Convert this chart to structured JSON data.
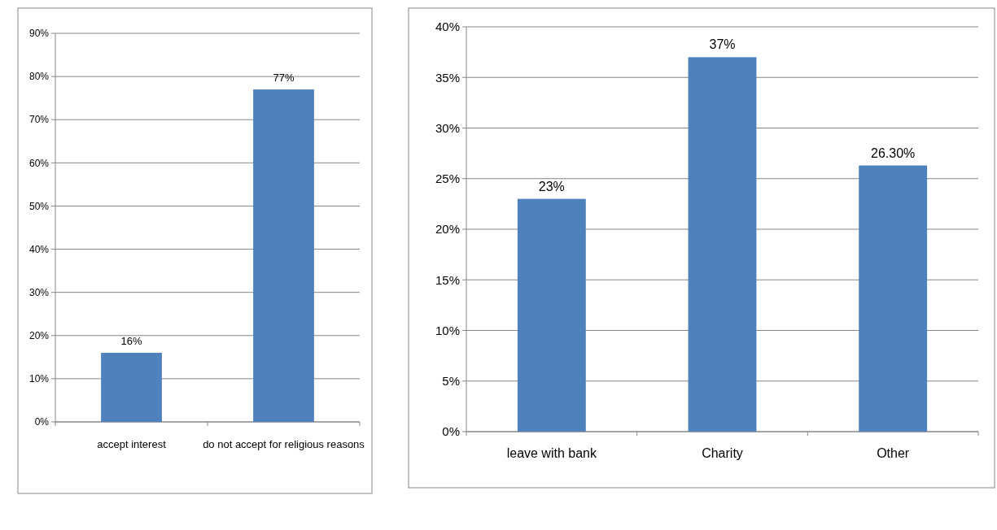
{
  "chart_data": [
    {
      "type": "bar",
      "categories": [
        "accept interest",
        "do not accept for religious reasons"
      ],
      "values": [
        16,
        77
      ],
      "color": "#4f81bd",
      "value_labels": [
        "16%",
        "77%"
      ],
      "ylim": [
        0,
        90
      ],
      "yticks": [
        {
          "value": 0,
          "label": "0%"
        },
        {
          "value": 10,
          "label": "10%"
        },
        {
          "value": 20,
          "label": "20%"
        },
        {
          "value": 30,
          "label": "30%"
        },
        {
          "value": 40,
          "label": "40%"
        },
        {
          "value": 50,
          "label": "50%"
        },
        {
          "value": 60,
          "label": "60%"
        },
        {
          "value": 70,
          "label": "70%"
        },
        {
          "value": 80,
          "label": "80%"
        },
        {
          "value": 90,
          "label": "90%"
        }
      ],
      "grid": "y"
    },
    {
      "type": "bar",
      "categories": [
        "leave with bank",
        "Charity",
        "Other"
      ],
      "values": [
        23,
        37,
        26.3
      ],
      "color": "#4f81bd",
      "value_labels": [
        "23%",
        "37%",
        "26.30%"
      ],
      "ylim": [
        0,
        40
      ],
      "yticks": [
        {
          "value": 0,
          "label": "0%"
        },
        {
          "value": 5,
          "label": "5%"
        },
        {
          "value": 10,
          "label": "10%"
        },
        {
          "value": 15,
          "label": "15%"
        },
        {
          "value": 20,
          "label": "20%"
        },
        {
          "value": 25,
          "label": "25%"
        },
        {
          "value": 30,
          "label": "30%"
        },
        {
          "value": 35,
          "label": "35%"
        },
        {
          "value": 40,
          "label": "40%"
        }
      ],
      "grid": "y"
    }
  ]
}
